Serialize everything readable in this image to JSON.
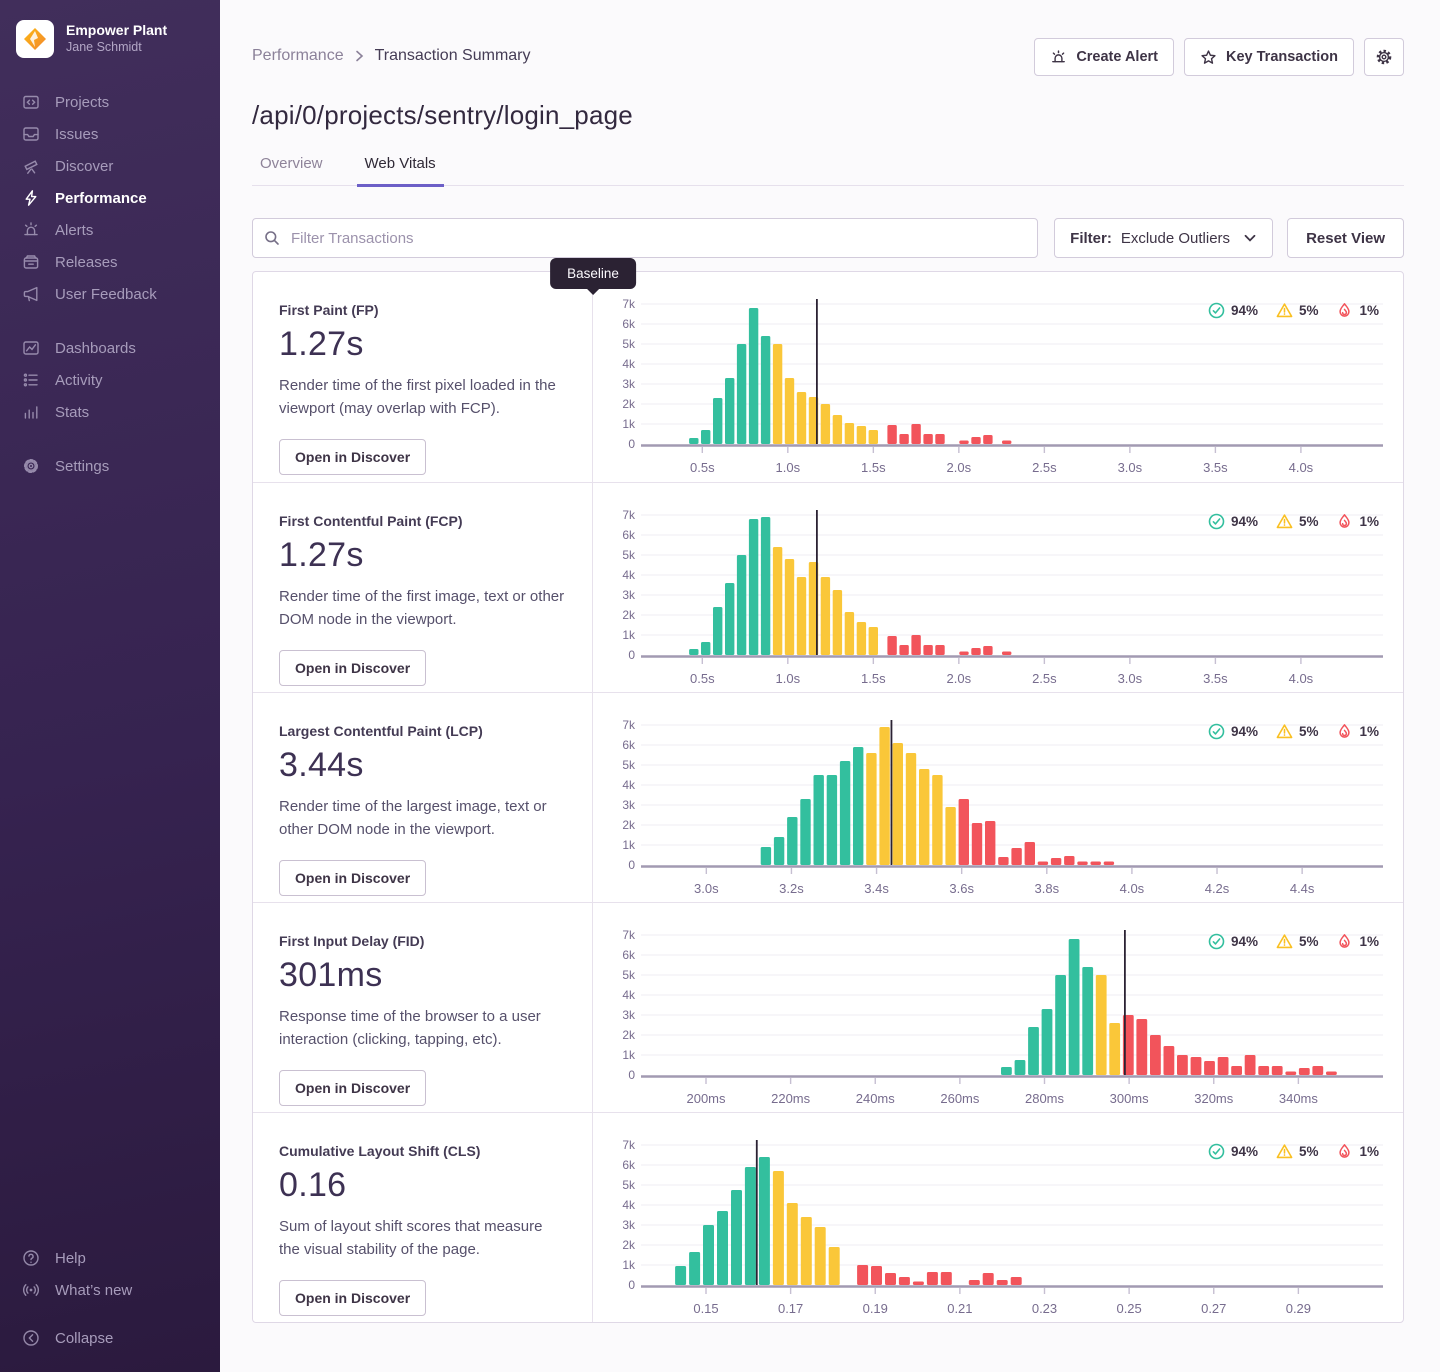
{
  "sidebar": {
    "org": "Empower Plant",
    "user": "Jane Schmidt",
    "groups": [
      {
        "items": [
          {
            "id": "projects",
            "label": "Projects"
          },
          {
            "id": "issues",
            "label": "Issues"
          },
          {
            "id": "discover",
            "label": "Discover"
          },
          {
            "id": "performance",
            "label": "Performance",
            "active": true
          },
          {
            "id": "alerts",
            "label": "Alerts"
          },
          {
            "id": "releases",
            "label": "Releases"
          },
          {
            "id": "user-feedback",
            "label": "User Feedback"
          }
        ]
      },
      {
        "items": [
          {
            "id": "dashboards",
            "label": "Dashboards"
          },
          {
            "id": "activity",
            "label": "Activity"
          },
          {
            "id": "stats",
            "label": "Stats"
          }
        ]
      },
      {
        "items": [
          {
            "id": "settings",
            "label": "Settings"
          }
        ]
      }
    ],
    "footer": [
      {
        "id": "help",
        "label": "Help"
      },
      {
        "id": "whats-new",
        "label": "What’s new"
      },
      {
        "id": "collapse",
        "label": "Collapse"
      }
    ]
  },
  "header": {
    "breadcrumb_parent": "Performance",
    "breadcrumb_current": "Transaction Summary",
    "create_alert": "Create Alert",
    "key_transaction": "Key Transaction",
    "title": "/api/0/projects/sentry/login_page",
    "tab_overview": "Overview",
    "tab_web_vitals": "Web Vitals"
  },
  "toolbar": {
    "filter_placeholder": "Filter Transactions",
    "filter_label": "Filter:",
    "filter_value": "Exclude Outliers",
    "reset_label": "Reset View"
  },
  "legend": {
    "pass": "94%",
    "warn": "5%",
    "fail": "1%"
  },
  "baseline_label": "Baseline",
  "open_in_discover": "Open in Discover",
  "chart_colors": {
    "g": "#33BF9E",
    "y": "#FAC739",
    "r": "#F2545B"
  },
  "vitals": [
    {
      "name": "First Paint (FP)",
      "value": "1.27s",
      "description": "Render time of the first pixel loaded in the viewport (may overlap with FCP).",
      "chart": {
        "type": "bar",
        "ymax": 7,
        "xmin": 0.2,
        "xmax": 4.48,
        "baseline": 1.17,
        "show_baseline_tooltip": true,
        "bar_width": 0.055,
        "ticks": [
          {
            "v": 0.5,
            "label": "0.5s"
          },
          {
            "v": 1.0,
            "label": "1.0s"
          },
          {
            "v": 1.5,
            "label": "1.5s"
          },
          {
            "v": 2.0,
            "label": "2.0s"
          },
          {
            "v": 2.5,
            "label": "2.5s"
          },
          {
            "v": 3.0,
            "label": "3.0s"
          },
          {
            "v": 3.5,
            "label": "3.5s"
          },
          {
            "v": 4.0,
            "label": "4.0s"
          }
        ],
        "bars": [
          [
            0.45,
            0.3,
            "g"
          ],
          [
            0.52,
            0.7,
            "g"
          ],
          [
            0.59,
            2.3,
            "g"
          ],
          [
            0.66,
            3.3,
            "g"
          ],
          [
            0.73,
            5.0,
            "g"
          ],
          [
            0.8,
            6.8,
            "g"
          ],
          [
            0.87,
            5.4,
            "g"
          ],
          [
            0.94,
            5.0,
            "y"
          ],
          [
            1.01,
            3.3,
            "y"
          ],
          [
            1.08,
            2.6,
            "y"
          ],
          [
            1.15,
            2.35,
            "y"
          ],
          [
            1.22,
            2.0,
            "y"
          ],
          [
            1.29,
            1.45,
            "y"
          ],
          [
            1.36,
            1.05,
            "y"
          ],
          [
            1.43,
            0.9,
            "y"
          ],
          [
            1.5,
            0.7,
            "y"
          ],
          [
            1.61,
            0.95,
            "r"
          ],
          [
            1.68,
            0.5,
            "r"
          ],
          [
            1.75,
            1.0,
            "r"
          ],
          [
            1.82,
            0.5,
            "r"
          ],
          [
            1.89,
            0.5,
            "r"
          ],
          [
            2.03,
            0.12,
            "r"
          ],
          [
            2.1,
            0.35,
            "r"
          ],
          [
            2.17,
            0.45,
            "r"
          ],
          [
            2.28,
            0.12,
            "r"
          ]
        ]
      }
    },
    {
      "name": "First Contentful Paint (FCP)",
      "value": "1.27s",
      "description": "Render time of the first image, text or other DOM node in the viewport.",
      "chart": {
        "type": "bar",
        "ymax": 7,
        "xmin": 0.2,
        "xmax": 4.48,
        "baseline": 1.17,
        "show_baseline_tooltip": false,
        "bar_width": 0.055,
        "ticks": [
          {
            "v": 0.5,
            "label": "0.5s"
          },
          {
            "v": 1.0,
            "label": "1.0s"
          },
          {
            "v": 1.5,
            "label": "1.5s"
          },
          {
            "v": 2.0,
            "label": "2.0s"
          },
          {
            "v": 2.5,
            "label": "2.5s"
          },
          {
            "v": 3.0,
            "label": "3.0s"
          },
          {
            "v": 3.5,
            "label": "3.5s"
          },
          {
            "v": 4.0,
            "label": "4.0s"
          }
        ],
        "bars": [
          [
            0.45,
            0.3,
            "g"
          ],
          [
            0.52,
            0.65,
            "g"
          ],
          [
            0.59,
            2.4,
            "g"
          ],
          [
            0.66,
            3.6,
            "g"
          ],
          [
            0.73,
            5.0,
            "g"
          ],
          [
            0.8,
            6.8,
            "g"
          ],
          [
            0.87,
            6.9,
            "g"
          ],
          [
            0.94,
            5.4,
            "y"
          ],
          [
            1.01,
            4.8,
            "y"
          ],
          [
            1.08,
            3.9,
            "y"
          ],
          [
            1.15,
            4.65,
            "y"
          ],
          [
            1.22,
            3.9,
            "y"
          ],
          [
            1.29,
            3.25,
            "y"
          ],
          [
            1.36,
            2.15,
            "y"
          ],
          [
            1.43,
            1.65,
            "y"
          ],
          [
            1.5,
            1.4,
            "y"
          ],
          [
            1.61,
            0.95,
            "r"
          ],
          [
            1.68,
            0.5,
            "r"
          ],
          [
            1.75,
            1.0,
            "r"
          ],
          [
            1.82,
            0.5,
            "r"
          ],
          [
            1.89,
            0.5,
            "r"
          ],
          [
            2.03,
            0.12,
            "r"
          ],
          [
            2.1,
            0.35,
            "r"
          ],
          [
            2.17,
            0.45,
            "r"
          ],
          [
            2.28,
            0.12,
            "r"
          ]
        ]
      }
    },
    {
      "name": "Largest Contentful Paint (LCP)",
      "value": "3.44s",
      "description": "Render time of the largest image, text or other DOM node in the viewport.",
      "chart": {
        "type": "bar",
        "ymax": 7,
        "xmin": 2.87,
        "xmax": 4.59,
        "baseline": 3.435,
        "show_baseline_tooltip": false,
        "bar_width": 0.0245,
        "ticks": [
          {
            "v": 3.0,
            "label": "3.0s"
          },
          {
            "v": 3.2,
            "label": "3.2s"
          },
          {
            "v": 3.4,
            "label": "3.4s"
          },
          {
            "v": 3.6,
            "label": "3.6s"
          },
          {
            "v": 3.8,
            "label": "3.8s"
          },
          {
            "v": 4.0,
            "label": "4.0s"
          },
          {
            "v": 4.2,
            "label": "4.2s"
          },
          {
            "v": 4.4,
            "label": "4.4s"
          }
        ],
        "bars": [
          [
            3.14,
            0.9,
            "g"
          ],
          [
            3.171,
            1.4,
            "g"
          ],
          [
            3.202,
            2.4,
            "g"
          ],
          [
            3.233,
            3.3,
            "g"
          ],
          [
            3.264,
            4.5,
            "g"
          ],
          [
            3.295,
            4.5,
            "g"
          ],
          [
            3.326,
            5.2,
            "g"
          ],
          [
            3.357,
            5.9,
            "g"
          ],
          [
            3.388,
            5.6,
            "y"
          ],
          [
            3.419,
            6.9,
            "y"
          ],
          [
            3.45,
            6.1,
            "y"
          ],
          [
            3.481,
            5.6,
            "y"
          ],
          [
            3.512,
            4.8,
            "y"
          ],
          [
            3.543,
            4.5,
            "y"
          ],
          [
            3.574,
            2.9,
            "y"
          ],
          [
            3.605,
            3.3,
            "r"
          ],
          [
            3.636,
            2.1,
            "r"
          ],
          [
            3.667,
            2.2,
            "r"
          ],
          [
            3.698,
            0.4,
            "r"
          ],
          [
            3.729,
            0.85,
            "r"
          ],
          [
            3.76,
            1.15,
            "r"
          ],
          [
            3.791,
            0.12,
            "r"
          ],
          [
            3.822,
            0.35,
            "r"
          ],
          [
            3.853,
            0.45,
            "r"
          ],
          [
            3.884,
            0.12,
            "r"
          ],
          [
            3.915,
            0.12,
            "r"
          ],
          [
            3.946,
            0.12,
            "r"
          ]
        ]
      }
    },
    {
      "name": "First Input Delay (FID)",
      "value": "301ms",
      "description": "Response time of the browser to a user interaction (clicking, tapping, etc).",
      "chart": {
        "type": "bar",
        "ymax": 7,
        "xmin": 187,
        "xmax": 360,
        "baseline": 299,
        "show_baseline_tooltip": false,
        "bar_width": 2.55,
        "ticks": [
          {
            "v": 200,
            "label": "200ms"
          },
          {
            "v": 220,
            "label": "220ms"
          },
          {
            "v": 240,
            "label": "240ms"
          },
          {
            "v": 260,
            "label": "260ms"
          },
          {
            "v": 280,
            "label": "280ms"
          },
          {
            "v": 300,
            "label": "300ms"
          },
          {
            "v": 320,
            "label": "320ms"
          },
          {
            "v": 340,
            "label": "340ms"
          }
        ],
        "bars": [
          [
            271,
            0.4,
            "g"
          ],
          [
            274.2,
            0.75,
            "g"
          ],
          [
            277.4,
            2.4,
            "g"
          ],
          [
            280.6,
            3.3,
            "g"
          ],
          [
            283.8,
            5.0,
            "g"
          ],
          [
            287,
            6.8,
            "g"
          ],
          [
            290.2,
            5.4,
            "g"
          ],
          [
            293.4,
            5.0,
            "y"
          ],
          [
            296.6,
            2.6,
            "y"
          ],
          [
            299.8,
            3.0,
            "r"
          ],
          [
            303,
            2.8,
            "r"
          ],
          [
            306.2,
            2.0,
            "r"
          ],
          [
            309.4,
            1.45,
            "r"
          ],
          [
            312.6,
            1.0,
            "r"
          ],
          [
            315.8,
            0.9,
            "r"
          ],
          [
            319,
            0.7,
            "r"
          ],
          [
            322.2,
            0.9,
            "r"
          ],
          [
            325.4,
            0.45,
            "r"
          ],
          [
            328.6,
            1.0,
            "r"
          ],
          [
            331.8,
            0.45,
            "r"
          ],
          [
            335,
            0.45,
            "r"
          ],
          [
            338.2,
            0.12,
            "r"
          ],
          [
            341.4,
            0.35,
            "r"
          ],
          [
            344.6,
            0.45,
            "r"
          ],
          [
            347.8,
            0.12,
            "r"
          ]
        ]
      }
    },
    {
      "name": "Cumulative Layout Shift (CLS)",
      "value": "0.16",
      "description": "Sum of layout shift scores that measure the visual stability of the page.",
      "chart": {
        "type": "bar",
        "ymax": 7,
        "xmin": 0.137,
        "xmax": 0.31,
        "baseline": 0.162,
        "show_baseline_tooltip": false,
        "bar_width": 0.0026,
        "ticks": [
          {
            "v": 0.15,
            "label": "0.15"
          },
          {
            "v": 0.17,
            "label": "0.17"
          },
          {
            "v": 0.19,
            "label": "0.19"
          },
          {
            "v": 0.21,
            "label": "0.21"
          },
          {
            "v": 0.23,
            "label": "0.23"
          },
          {
            "v": 0.25,
            "label": "0.25"
          },
          {
            "v": 0.27,
            "label": "0.27"
          },
          {
            "v": 0.29,
            "label": "0.29"
          }
        ],
        "bars": [
          [
            0.144,
            0.95,
            "g"
          ],
          [
            0.1473,
            1.65,
            "g"
          ],
          [
            0.1506,
            3.0,
            "g"
          ],
          [
            0.1539,
            3.7,
            "g"
          ],
          [
            0.1572,
            4.75,
            "g"
          ],
          [
            0.1605,
            5.9,
            "g"
          ],
          [
            0.1638,
            6.4,
            "g"
          ],
          [
            0.1671,
            5.7,
            "y"
          ],
          [
            0.1704,
            4.1,
            "y"
          ],
          [
            0.1737,
            3.4,
            "y"
          ],
          [
            0.177,
            2.9,
            "y"
          ],
          [
            0.1803,
            1.9,
            "y"
          ],
          [
            0.187,
            1.0,
            "r"
          ],
          [
            0.1903,
            0.95,
            "r"
          ],
          [
            0.1936,
            0.6,
            "r"
          ],
          [
            0.1969,
            0.4,
            "r"
          ],
          [
            0.2002,
            0.15,
            "r"
          ],
          [
            0.2035,
            0.65,
            "r"
          ],
          [
            0.2068,
            0.65,
            "r"
          ],
          [
            0.2134,
            0.25,
            "r"
          ],
          [
            0.2167,
            0.6,
            "r"
          ],
          [
            0.22,
            0.25,
            "r"
          ],
          [
            0.2233,
            0.4,
            "r"
          ]
        ]
      }
    }
  ]
}
